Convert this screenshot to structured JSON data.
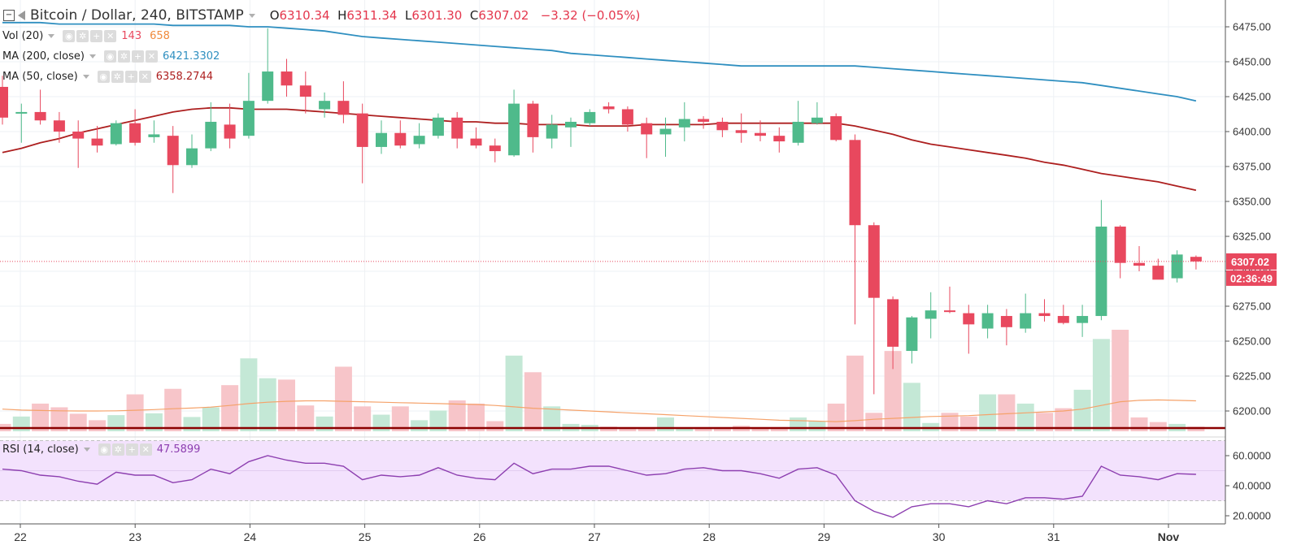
{
  "header": {
    "symbol": "Bitcoin / Dollar, 240, BITSTAMP",
    "o_label": "O",
    "o_value": "6310.34",
    "h_label": "H",
    "h_value": "6311.34",
    "l_label": "L",
    "l_value": "6301.30",
    "c_label": "C",
    "c_value": "6307.02",
    "change": "−3.32 (−0.05%)"
  },
  "indicators": {
    "vol": {
      "label": "Vol (20)",
      "value1": "143",
      "value2": "658"
    },
    "ma200": {
      "label": "MA (200, close)",
      "value": "6421.3302"
    },
    "ma50": {
      "label": "MA (50, close)",
      "value": "6358.2744"
    },
    "rsi": {
      "label": "RSI (14, close)",
      "value": "47.5899"
    }
  },
  "price_badge": {
    "price": "6307.02",
    "countdown": "02:36:49"
  },
  "colors": {
    "up": "#4fba8b",
    "down": "#e8485e",
    "ma200": "#2f8fc0",
    "ma50": "#ad1f1f",
    "vol_ma": "#f5a26a",
    "rsi": "#8d3fb0",
    "rsi_band": "#f3e2fd",
    "vol_up": "#c4e8d6",
    "vol_down": "#f7c5c9"
  },
  "chart_data": {
    "type": "candlestick",
    "x_ticks": [
      "22",
      "23",
      "24",
      "25",
      "26",
      "27",
      "28",
      "29",
      "30",
      "31",
      "Nov"
    ],
    "y_ticks": [
      "6200.00",
      "6225.00",
      "6250.00",
      "6275.00",
      "6300.00",
      "6325.00",
      "6350.00",
      "6375.00",
      "6400.00",
      "6425.00",
      "6450.00",
      "6475.00"
    ],
    "rsi_ticks": [
      "20.0000",
      "40.0000",
      "60.0000"
    ],
    "candles": [
      [
        6432,
        6440,
        6405,
        6410
      ],
      [
        6413,
        6420,
        6392,
        6414
      ],
      [
        6414,
        6430,
        6405,
        6408
      ],
      [
        6408,
        6414,
        6392,
        6400
      ],
      [
        6400,
        6408,
        6374,
        6395
      ],
      [
        6395,
        6404,
        6385,
        6390
      ],
      [
        6391,
        6408,
        6390,
        6406
      ],
      [
        6406,
        6416,
        6390,
        6392
      ],
      [
        6396,
        6408,
        6392,
        6398
      ],
      [
        6397,
        6404,
        6356,
        6376
      ],
      [
        6376,
        6398,
        6374,
        6388
      ],
      [
        6388,
        6421,
        6386,
        6407
      ],
      [
        6405,
        6420,
        6388,
        6395
      ],
      [
        6397,
        6442,
        6395,
        6422
      ],
      [
        6422,
        6474,
        6420,
        6443
      ],
      [
        6443,
        6452,
        6425,
        6433
      ],
      [
        6433,
        6443,
        6413,
        6425
      ],
      [
        6416,
        6428,
        6410,
        6422
      ],
      [
        6422,
        6436,
        6406,
        6412
      ],
      [
        6413,
        6420,
        6363,
        6389
      ],
      [
        6389,
        6408,
        6384,
        6399
      ],
      [
        6399,
        6408,
        6388,
        6390
      ],
      [
        6391,
        6406,
        6388,
        6397
      ],
      [
        6397,
        6413,
        6395,
        6410
      ],
      [
        6410,
        6414,
        6388,
        6395
      ],
      [
        6395,
        6403,
        6388,
        6390
      ],
      [
        6390,
        6395,
        6378,
        6386
      ],
      [
        6383,
        6430,
        6382,
        6420
      ],
      [
        6420,
        6422,
        6385,
        6396
      ],
      [
        6395,
        6412,
        6388,
        6405
      ],
      [
        6403,
        6410,
        6389,
        6407
      ],
      [
        6406,
        6416,
        6404,
        6414
      ],
      [
        6418,
        6421,
        6413,
        6416
      ],
      [
        6416,
        6418,
        6400,
        6405
      ],
      [
        6406,
        6410,
        6381,
        6398
      ],
      [
        6398,
        6410,
        6382,
        6402
      ],
      [
        6403,
        6421,
        6393,
        6409
      ],
      [
        6409,
        6411,
        6402,
        6407
      ],
      [
        6407,
        6410,
        6396,
        6401
      ],
      [
        6401,
        6413,
        6392,
        6399
      ],
      [
        6399,
        6408,
        6393,
        6397
      ],
      [
        6397,
        6403,
        6385,
        6393
      ],
      [
        6392,
        6422,
        6390,
        6407
      ],
      [
        6406,
        6421,
        6405,
        6410
      ],
      [
        6411,
        6413,
        6393,
        6394
      ],
      [
        6394,
        6398,
        6262,
        6333
      ],
      [
        6333,
        6335,
        6212,
        6281
      ],
      [
        6280,
        6282,
        6230,
        6246
      ],
      [
        6243,
        6268,
        6234,
        6267
      ],
      [
        6266,
        6285,
        6252,
        6272
      ],
      [
        6272,
        6289,
        6270,
        6271
      ],
      [
        6270,
        6276,
        6241,
        6262
      ],
      [
        6259,
        6276,
        6252,
        6270
      ],
      [
        6268,
        6273,
        6247,
        6260
      ],
      [
        6259,
        6284,
        6256,
        6270
      ],
      [
        6270,
        6280,
        6264,
        6268
      ],
      [
        6268,
        6276,
        6262,
        6263
      ],
      [
        6263,
        6276,
        6253,
        6268
      ],
      [
        6268,
        6351,
        6265,
        6332
      ],
      [
        6332,
        6333,
        6295,
        6306
      ],
      [
        6306,
        6318,
        6300,
        6304
      ],
      [
        6304,
        6309,
        6296,
        6294
      ],
      [
        6295,
        6315,
        6292,
        6312
      ],
      [
        6310.34,
        6311.34,
        6301.3,
        6307.02
      ]
    ],
    "volume": [
      80,
      160,
      300,
      260,
      190,
      120,
      175,
      400,
      195,
      460,
      155,
      260,
      500,
      790,
      575,
      560,
      280,
      160,
      700,
      270,
      180,
      270,
      120,
      225,
      335,
      300,
      110,
      820,
      640,
      270,
      80,
      70,
      50,
      40,
      30,
      150,
      40,
      30,
      35,
      60,
      40,
      45,
      150,
      110,
      300,
      820,
      200,
      870,
      525,
      90,
      200,
      160,
      400,
      400,
      300,
      200,
      250,
      450,
      1000,
      1100,
      150,
      100,
      80,
      50
    ],
    "vol_ma": [
      240,
      230,
      225,
      222,
      220,
      220,
      222,
      228,
      235,
      245,
      252,
      262,
      280,
      300,
      315,
      325,
      330,
      330,
      325,
      320,
      315,
      310,
      305,
      300,
      295,
      290,
      280,
      265,
      250,
      240,
      230,
      220,
      210,
      200,
      190,
      180,
      170,
      160,
      150,
      140,
      130,
      120,
      115,
      110,
      105,
      115,
      130,
      140,
      150,
      160,
      165,
      170,
      180,
      190,
      200,
      210,
      220,
      240,
      280,
      320,
      335,
      340,
      335,
      330
    ],
    "ma200": [
      6478,
      6478,
      6478,
      6477,
      6477,
      6477,
      6477,
      6477,
      6477,
      6476,
      6476,
      6476,
      6476,
      6475,
      6475,
      6474,
      6473,
      6472,
      6470,
      6468,
      6467,
      6466,
      6465,
      6464,
      6463,
      6462,
      6461,
      6460,
      6459,
      6458,
      6456,
      6455,
      6454,
      6453,
      6452,
      6451,
      6450,
      6449,
      6448,
      6447,
      6447,
      6447,
      6447,
      6447,
      6447,
      6447,
      6446,
      6445,
      6444,
      6443,
      6442,
      6441,
      6440,
      6439,
      6438,
      6437,
      6436,
      6435,
      6433,
      6431,
      6429,
      6427,
      6425,
      6422
    ],
    "ma50": [
      6385,
      6388,
      6392,
      6395,
      6399,
      6402,
      6405,
      6408,
      6411,
      6414,
      6416,
      6417,
      6417,
      6416,
      6416,
      6416,
      6415,
      6414,
      6413,
      6412,
      6411,
      6410,
      6409,
      6408,
      6407,
      6407,
      6406,
      6406,
      6405,
      6405,
      6405,
      6404,
      6404,
      6404,
      6405,
      6405,
      6405,
      6405,
      6406,
      6406,
      6406,
      6406,
      6406,
      6406,
      6406,
      6404,
      6401,
      6398,
      6394,
      6391,
      6389,
      6387,
      6385,
      6383,
      6381,
      6378,
      6376,
      6373,
      6370,
      6368,
      6366,
      6364,
      6361,
      6358
    ],
    "rsi": [
      51,
      50,
      47,
      46,
      43,
      41,
      49,
      47,
      47,
      42,
      44,
      51,
      48,
      56,
      60,
      57,
      55,
      55,
      53,
      44,
      47,
      46,
      47,
      52,
      47,
      45,
      44,
      55,
      48,
      51,
      51,
      53,
      53,
      50,
      47,
      48,
      51,
      52,
      50,
      50,
      48,
      45,
      51,
      52,
      47,
      30,
      23,
      19,
      26,
      28,
      28,
      26,
      30,
      28,
      32,
      32,
      31,
      33,
      53,
      47,
      46,
      44,
      48,
      47.5899
    ]
  }
}
